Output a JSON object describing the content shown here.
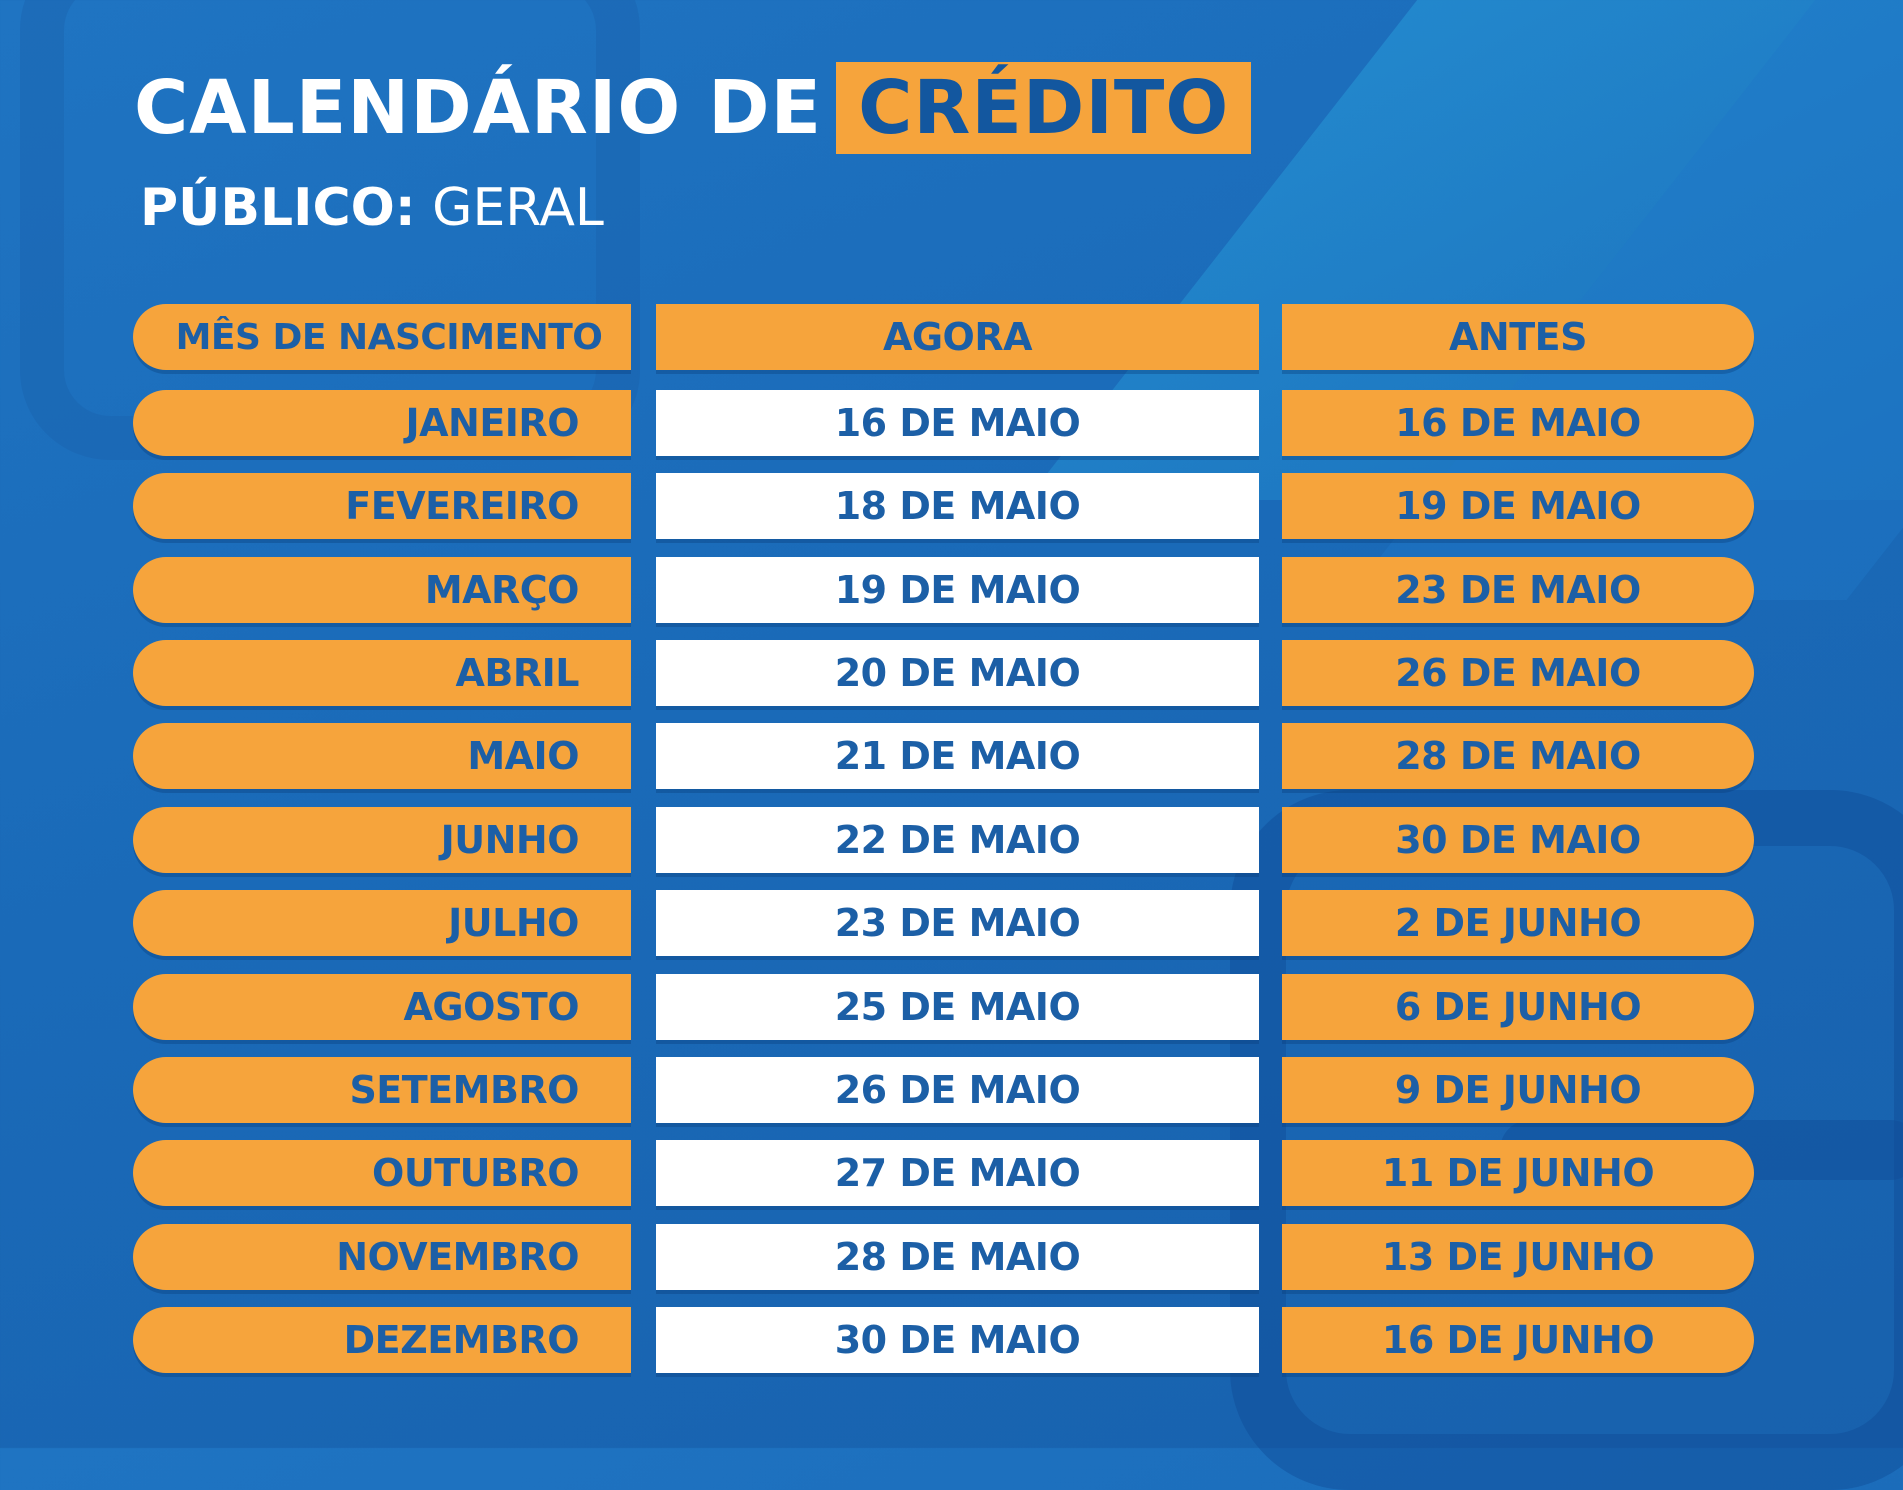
{
  "title": {
    "main": "CALENDÁRIO DE",
    "highlight": "CRÉDITO"
  },
  "subtitle": {
    "label": "PÚBLICO:",
    "value": "GERAL"
  },
  "colors": {
    "background": "#1a6ab8",
    "accent": "#f6a43c",
    "text_dark": "#1c5fa6",
    "white": "#ffffff"
  },
  "table": {
    "headers": [
      "MÊS DE NASCIMENTO",
      "AGORA",
      "ANTES"
    ],
    "rows": [
      [
        "JANEIRO",
        "16 DE MAIO",
        "16 DE MAIO"
      ],
      [
        "FEVEREIRO",
        "18 DE MAIO",
        "19 DE MAIO"
      ],
      [
        "MARÇO",
        "19 DE MAIO",
        "23 DE MAIO"
      ],
      [
        "ABRIL",
        "20 DE MAIO",
        "26 DE MAIO"
      ],
      [
        "MAIO",
        "21 DE MAIO",
        "28 DE MAIO"
      ],
      [
        "JUNHO",
        "22 DE MAIO",
        "30 DE MAIO"
      ],
      [
        "JULHO",
        "23 DE MAIO",
        "2 DE JUNHO"
      ],
      [
        "AGOSTO",
        "25 DE MAIO",
        "6 DE JUNHO"
      ],
      [
        "SETEMBRO",
        "26 DE MAIO",
        "9 DE JUNHO"
      ],
      [
        "OUTUBRO",
        "27 DE MAIO",
        "11 DE JUNHO"
      ],
      [
        "NOVEMBRO",
        "28 DE MAIO",
        "13 DE JUNHO"
      ],
      [
        "DEZEMBRO",
        "30 DE MAIO",
        "16 DE JUNHO"
      ]
    ]
  }
}
